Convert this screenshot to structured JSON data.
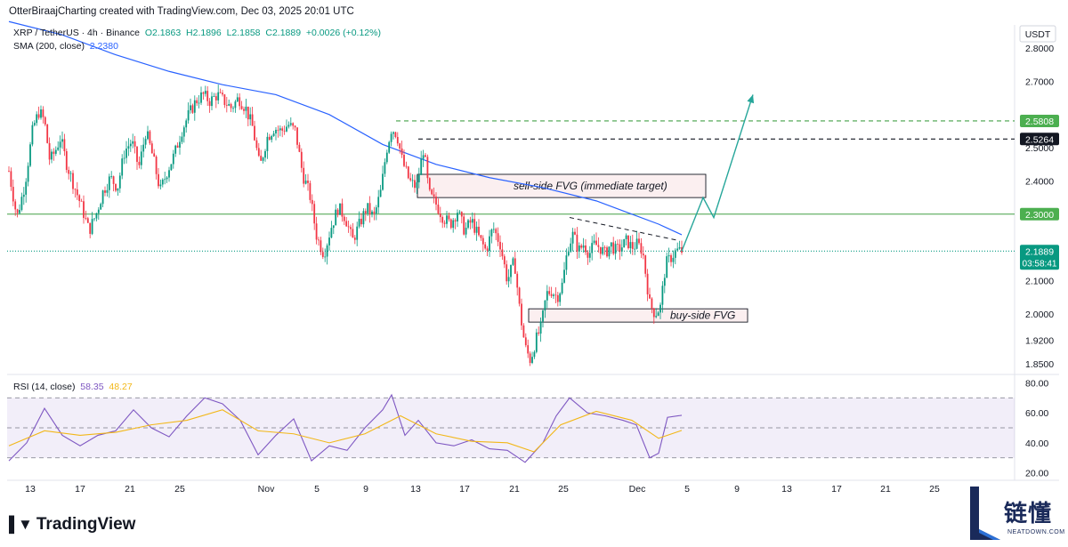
{
  "header": "OtterBiraajCharting created with TradingView.com, Dec 03, 2025 20:01 UTC",
  "legend": {
    "symbol": "XRP / TetherUS · 4h · Binance",
    "open": "O2.1863",
    "high": "H2.1896",
    "low": "L2.1858",
    "close": "C2.1889",
    "change": "+0.0026 (+0.12%)",
    "sma_label": "SMA (200, close)",
    "sma_value": "2.2380"
  },
  "rsi_legend": {
    "label": "RSI (14, close)",
    "rsi_value": "58.35",
    "ma_value": "48.27"
  },
  "footer_logo": "TradingView",
  "brand": {
    "cn": "链懂",
    "en": "NEATDOWN.COM"
  },
  "chart_data": {
    "type": "candlestick",
    "symbol": "XRP / TetherUS",
    "timeframe": "4h",
    "currency": "USDT",
    "price_axis": {
      "range": [
        1.82,
        2.87
      ],
      "ticks": [
        2.8,
        2.7,
        2.5,
        2.4,
        2.1,
        2.0,
        1.92,
        1.85
      ],
      "tick_labels": [
        "2.8000",
        "2.7000",
        "2.5000",
        "2.4000",
        "2.1000",
        "2.0000",
        "1.9200",
        "1.8500"
      ]
    },
    "x_axis": {
      "labels": [
        "13",
        "17",
        "21",
        "25",
        "Nov",
        "5",
        "9",
        "13",
        "17",
        "21",
        "25",
        "Dec",
        "5",
        "9",
        "13",
        "17",
        "21",
        "25"
      ]
    },
    "price_path": [
      {
        "x": 0,
        "y": 2.43
      },
      {
        "x": 9,
        "y": 2.29
      },
      {
        "x": 18,
        "y": 2.39
      },
      {
        "x": 27,
        "y": 2.56
      },
      {
        "x": 34,
        "y": 2.61
      },
      {
        "x": 40,
        "y": 2.58
      },
      {
        "x": 46,
        "y": 2.46
      },
      {
        "x": 52,
        "y": 2.49
      },
      {
        "x": 58,
        "y": 2.53
      },
      {
        "x": 65,
        "y": 2.45
      },
      {
        "x": 74,
        "y": 2.38
      },
      {
        "x": 82,
        "y": 2.32
      },
      {
        "x": 90,
        "y": 2.25
      },
      {
        "x": 98,
        "y": 2.3
      },
      {
        "x": 106,
        "y": 2.37
      },
      {
        "x": 114,
        "y": 2.41
      },
      {
        "x": 122,
        "y": 2.38
      },
      {
        "x": 130,
        "y": 2.49
      },
      {
        "x": 138,
        "y": 2.52
      },
      {
        "x": 146,
        "y": 2.44
      },
      {
        "x": 154,
        "y": 2.55
      },
      {
        "x": 162,
        "y": 2.47
      },
      {
        "x": 170,
        "y": 2.37
      },
      {
        "x": 178,
        "y": 2.43
      },
      {
        "x": 186,
        "y": 2.48
      },
      {
        "x": 194,
        "y": 2.55
      },
      {
        "x": 202,
        "y": 2.6
      },
      {
        "x": 210,
        "y": 2.64
      },
      {
        "x": 218,
        "y": 2.66
      },
      {
        "x": 226,
        "y": 2.64
      },
      {
        "x": 234,
        "y": 2.66
      },
      {
        "x": 242,
        "y": 2.64
      },
      {
        "x": 250,
        "y": 2.62
      },
      {
        "x": 258,
        "y": 2.65
      },
      {
        "x": 266,
        "y": 2.62
      },
      {
        "x": 274,
        "y": 2.56
      },
      {
        "x": 282,
        "y": 2.44
      },
      {
        "x": 290,
        "y": 2.53
      },
      {
        "x": 298,
        "y": 2.56
      },
      {
        "x": 306,
        "y": 2.55
      },
      {
        "x": 314,
        "y": 2.57
      },
      {
        "x": 322,
        "y": 2.55
      },
      {
        "x": 330,
        "y": 2.42
      },
      {
        "x": 338,
        "y": 2.36
      },
      {
        "x": 346,
        "y": 2.23
      },
      {
        "x": 354,
        "y": 2.18
      },
      {
        "x": 362,
        "y": 2.26
      },
      {
        "x": 370,
        "y": 2.32
      },
      {
        "x": 378,
        "y": 2.29
      },
      {
        "x": 386,
        "y": 2.22
      },
      {
        "x": 394,
        "y": 2.27
      },
      {
        "x": 402,
        "y": 2.32
      },
      {
        "x": 410,
        "y": 2.29
      },
      {
        "x": 418,
        "y": 2.37
      },
      {
        "x": 424,
        "y": 2.49
      },
      {
        "x": 430,
        "y": 2.56
      },
      {
        "x": 436,
        "y": 2.54
      },
      {
        "x": 442,
        "y": 2.46
      },
      {
        "x": 450,
        "y": 2.4
      },
      {
        "x": 458,
        "y": 2.38
      },
      {
        "x": 466,
        "y": 2.5
      },
      {
        "x": 472,
        "y": 2.36
      },
      {
        "x": 480,
        "y": 2.33
      },
      {
        "x": 488,
        "y": 2.29
      },
      {
        "x": 496,
        "y": 2.27
      },
      {
        "x": 504,
        "y": 2.31
      },
      {
        "x": 512,
        "y": 2.25
      },
      {
        "x": 520,
        "y": 2.28
      },
      {
        "x": 528,
        "y": 2.23
      },
      {
        "x": 536,
        "y": 2.19
      },
      {
        "x": 544,
        "y": 2.26
      },
      {
        "x": 552,
        "y": 2.21
      },
      {
        "x": 560,
        "y": 2.1
      },
      {
        "x": 568,
        "y": 2.16
      },
      {
        "x": 574,
        "y": 2.01
      },
      {
        "x": 580,
        "y": 1.9
      },
      {
        "x": 586,
        "y": 1.86
      },
      {
        "x": 592,
        "y": 1.92
      },
      {
        "x": 598,
        "y": 1.96
      },
      {
        "x": 604,
        "y": 2.06
      },
      {
        "x": 610,
        "y": 2.07
      },
      {
        "x": 616,
        "y": 2.05
      },
      {
        "x": 622,
        "y": 2.09
      },
      {
        "x": 628,
        "y": 2.2
      },
      {
        "x": 634,
        "y": 2.24
      },
      {
        "x": 640,
        "y": 2.19
      },
      {
        "x": 646,
        "y": 2.21
      },
      {
        "x": 652,
        "y": 2.18
      },
      {
        "x": 658,
        "y": 2.21
      },
      {
        "x": 664,
        "y": 2.2
      },
      {
        "x": 670,
        "y": 2.18
      },
      {
        "x": 676,
        "y": 2.21
      },
      {
        "x": 682,
        "y": 2.19
      },
      {
        "x": 688,
        "y": 2.2
      },
      {
        "x": 694,
        "y": 2.22
      },
      {
        "x": 700,
        "y": 2.2
      },
      {
        "x": 706,
        "y": 2.21
      },
      {
        "x": 712,
        "y": 2.19
      },
      {
        "x": 716,
        "y": 2.11
      },
      {
        "x": 720,
        "y": 2.03
      },
      {
        "x": 726,
        "y": 2.0
      },
      {
        "x": 732,
        "y": 2.02
      },
      {
        "x": 738,
        "y": 2.15
      },
      {
        "x": 744,
        "y": 2.17
      },
      {
        "x": 750,
        "y": 2.19
      },
      {
        "x": 756,
        "y": 2.189
      }
    ],
    "sma200": [
      {
        "x": 0,
        "y": 2.88
      },
      {
        "x": 60,
        "y": 2.84
      },
      {
        "x": 120,
        "y": 2.78
      },
      {
        "x": 180,
        "y": 2.73
      },
      {
        "x": 240,
        "y": 2.69
      },
      {
        "x": 300,
        "y": 2.66
      },
      {
        "x": 360,
        "y": 2.6
      },
      {
        "x": 420,
        "y": 2.51
      },
      {
        "x": 480,
        "y": 2.45
      },
      {
        "x": 540,
        "y": 2.41
      },
      {
        "x": 600,
        "y": 2.38
      },
      {
        "x": 660,
        "y": 2.34
      },
      {
        "x": 700,
        "y": 2.3
      },
      {
        "x": 730,
        "y": 2.27
      },
      {
        "x": 756,
        "y": 2.238
      }
    ],
    "horizontal_levels": [
      {
        "value": 2.5808,
        "label": "2.5808",
        "style": "dashed",
        "color": "#43a047"
      },
      {
        "value": 2.5264,
        "label": "2.5264",
        "style": "dashed",
        "color": "#131722"
      },
      {
        "value": 2.3,
        "label": "2.3000",
        "style": "solid",
        "color": "#43a047"
      },
      {
        "value": 2.1889,
        "label": "2.1889",
        "sublabel": "03:58:41",
        "style": "dotted",
        "color": "#089981"
      }
    ],
    "zones": [
      {
        "label": "sell-side FVG (immediate target)",
        "top": 2.42,
        "bottom": 2.35
      },
      {
        "label": "buy-side FVG",
        "top": 2.015,
        "bottom": 1.975
      }
    ],
    "trendline": [
      {
        "x": 630,
        "y": 2.29
      },
      {
        "x": 750,
        "y": 2.222
      }
    ],
    "projection": [
      {
        "x": 756,
        "y": 2.189
      },
      {
        "x": 780,
        "y": 2.35
      },
      {
        "x": 792,
        "y": 2.29
      },
      {
        "x": 836,
        "y": 2.66
      }
    ],
    "rsi": {
      "axis_ticks": [
        80,
        60,
        40,
        20
      ],
      "tick_labels": [
        "80.00",
        "60.00",
        "40.00",
        "20.00"
      ],
      "bands": [
        70,
        50,
        30
      ],
      "range": [
        15,
        85
      ],
      "values": [
        {
          "x": 0,
          "y": 28
        },
        {
          "x": 20,
          "y": 40
        },
        {
          "x": 40,
          "y": 63
        },
        {
          "x": 60,
          "y": 45
        },
        {
          "x": 80,
          "y": 38
        },
        {
          "x": 100,
          "y": 45
        },
        {
          "x": 120,
          "y": 48
        },
        {
          "x": 140,
          "y": 62
        },
        {
          "x": 160,
          "y": 50
        },
        {
          "x": 180,
          "y": 44
        },
        {
          "x": 200,
          "y": 58
        },
        {
          "x": 220,
          "y": 70
        },
        {
          "x": 240,
          "y": 66
        },
        {
          "x": 260,
          "y": 55
        },
        {
          "x": 280,
          "y": 32
        },
        {
          "x": 300,
          "y": 45
        },
        {
          "x": 320,
          "y": 56
        },
        {
          "x": 340,
          "y": 28
        },
        {
          "x": 360,
          "y": 38
        },
        {
          "x": 380,
          "y": 35
        },
        {
          "x": 400,
          "y": 50
        },
        {
          "x": 420,
          "y": 62
        },
        {
          "x": 430,
          "y": 72
        },
        {
          "x": 445,
          "y": 45
        },
        {
          "x": 460,
          "y": 55
        },
        {
          "x": 480,
          "y": 40
        },
        {
          "x": 500,
          "y": 38
        },
        {
          "x": 520,
          "y": 42
        },
        {
          "x": 540,
          "y": 36
        },
        {
          "x": 560,
          "y": 35
        },
        {
          "x": 580,
          "y": 27
        },
        {
          "x": 600,
          "y": 40
        },
        {
          "x": 615,
          "y": 58
        },
        {
          "x": 630,
          "y": 70
        },
        {
          "x": 650,
          "y": 60
        },
        {
          "x": 670,
          "y": 58
        },
        {
          "x": 690,
          "y": 55
        },
        {
          "x": 705,
          "y": 52
        },
        {
          "x": 720,
          "y": 30
        },
        {
          "x": 730,
          "y": 33
        },
        {
          "x": 740,
          "y": 57
        },
        {
          "x": 756,
          "y": 58.35
        }
      ],
      "ma": [
        {
          "x": 0,
          "y": 38
        },
        {
          "x": 40,
          "y": 48
        },
        {
          "x": 80,
          "y": 45
        },
        {
          "x": 120,
          "y": 47
        },
        {
          "x": 160,
          "y": 52
        },
        {
          "x": 200,
          "y": 55
        },
        {
          "x": 240,
          "y": 62
        },
        {
          "x": 280,
          "y": 48
        },
        {
          "x": 320,
          "y": 46
        },
        {
          "x": 360,
          "y": 40
        },
        {
          "x": 400,
          "y": 46
        },
        {
          "x": 440,
          "y": 58
        },
        {
          "x": 480,
          "y": 46
        },
        {
          "x": 520,
          "y": 41
        },
        {
          "x": 560,
          "y": 40
        },
        {
          "x": 590,
          "y": 34
        },
        {
          "x": 620,
          "y": 52
        },
        {
          "x": 660,
          "y": 61
        },
        {
          "x": 700,
          "y": 55
        },
        {
          "x": 730,
          "y": 43
        },
        {
          "x": 756,
          "y": 48.27
        }
      ]
    }
  }
}
